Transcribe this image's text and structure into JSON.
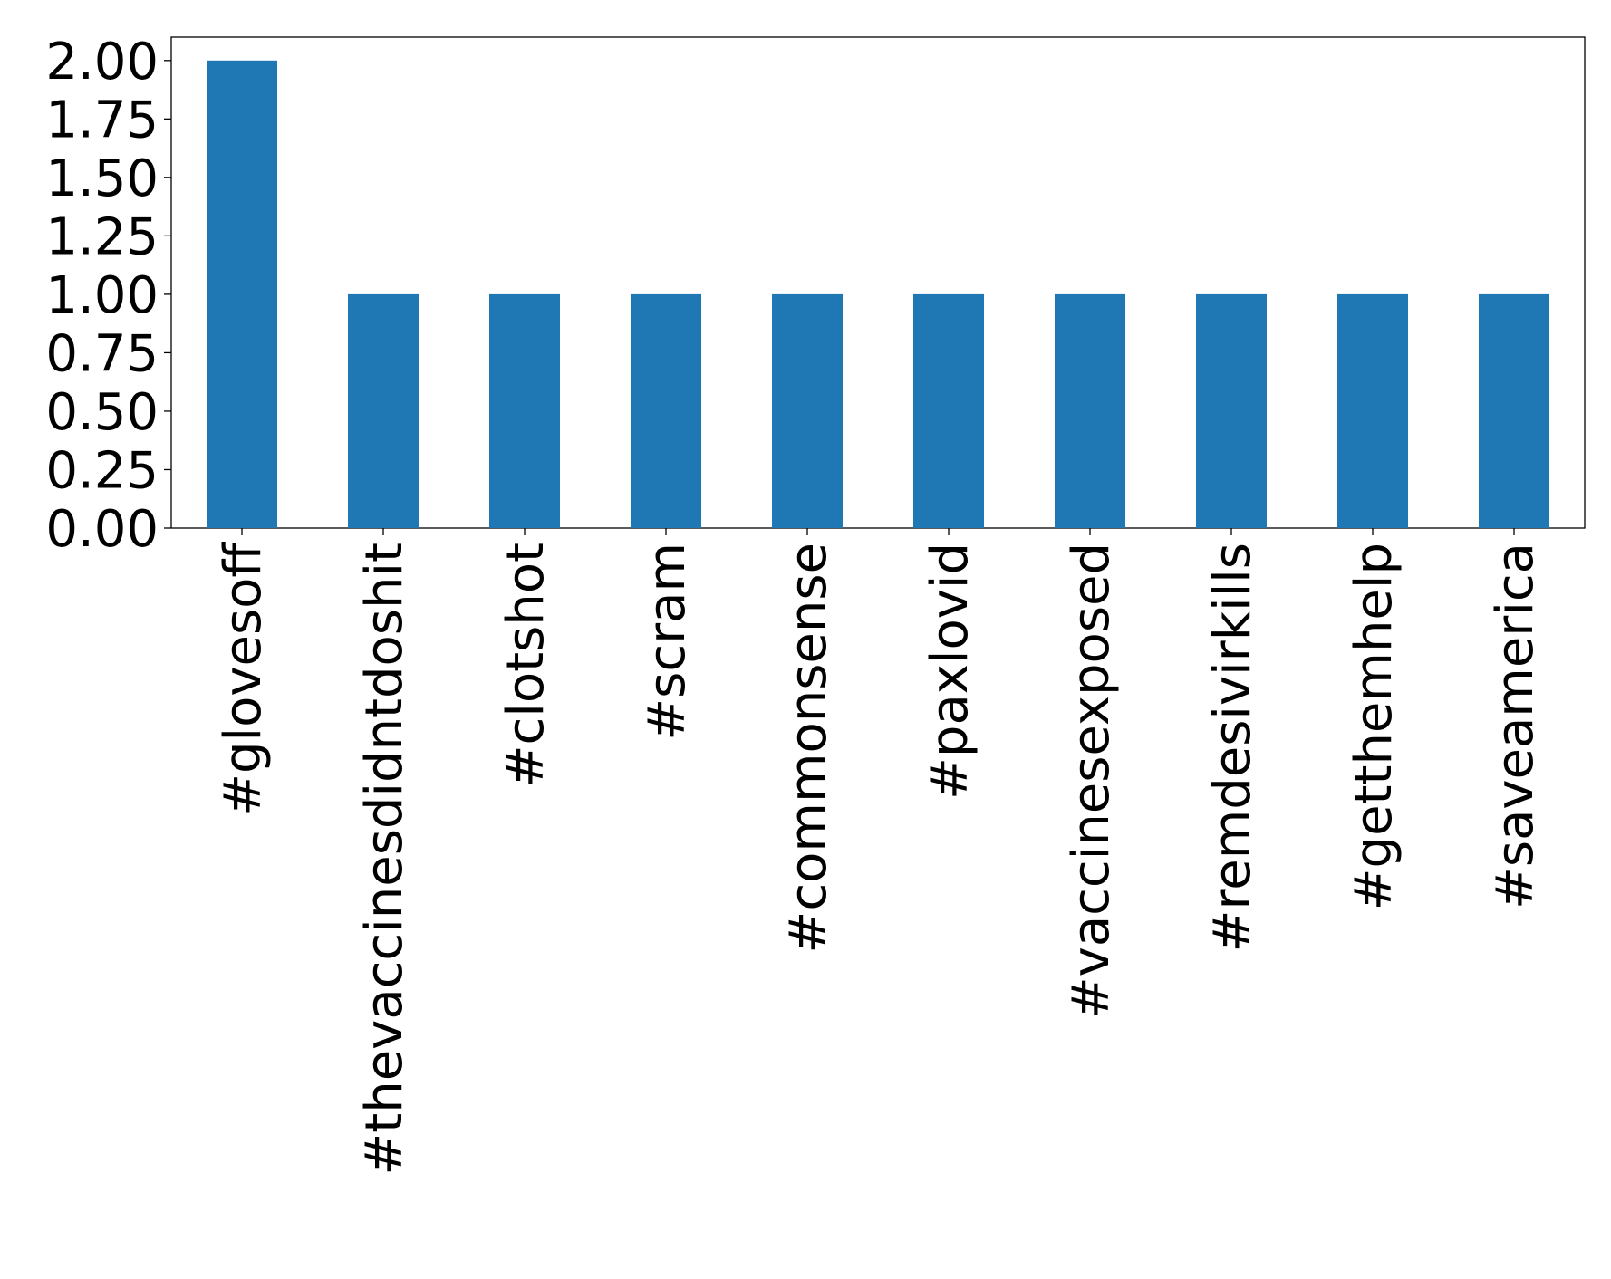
{
  "chart_data": {
    "type": "bar",
    "categories": [
      "#glovesoff",
      "#thevaccinesdidntdoshit",
      "#clotshot",
      "#scram",
      "#commonsense",
      "#paxlovid",
      "#vaccinesexposed",
      "#remdesivirkills",
      "#getthemhelp",
      "#saveamerica"
    ],
    "values": [
      2,
      1,
      1,
      1,
      1,
      1,
      1,
      1,
      1,
      1
    ],
    "color": "#1f77b4",
    "ylim": [
      0,
      2.1
    ],
    "yticks": [
      {
        "value": 0,
        "label": "0.00"
      },
      0.25,
      {
        "value": 0.5,
        "label": "0.50"
      },
      0.75,
      {
        "value": 1,
        "label": "1.00"
      },
      1.25,
      {
        "value": 1.5,
        "label": "1.50"
      },
      1.75,
      {
        "value": 2,
        "label": "2.00"
      }
    ],
    "grid": false
  }
}
